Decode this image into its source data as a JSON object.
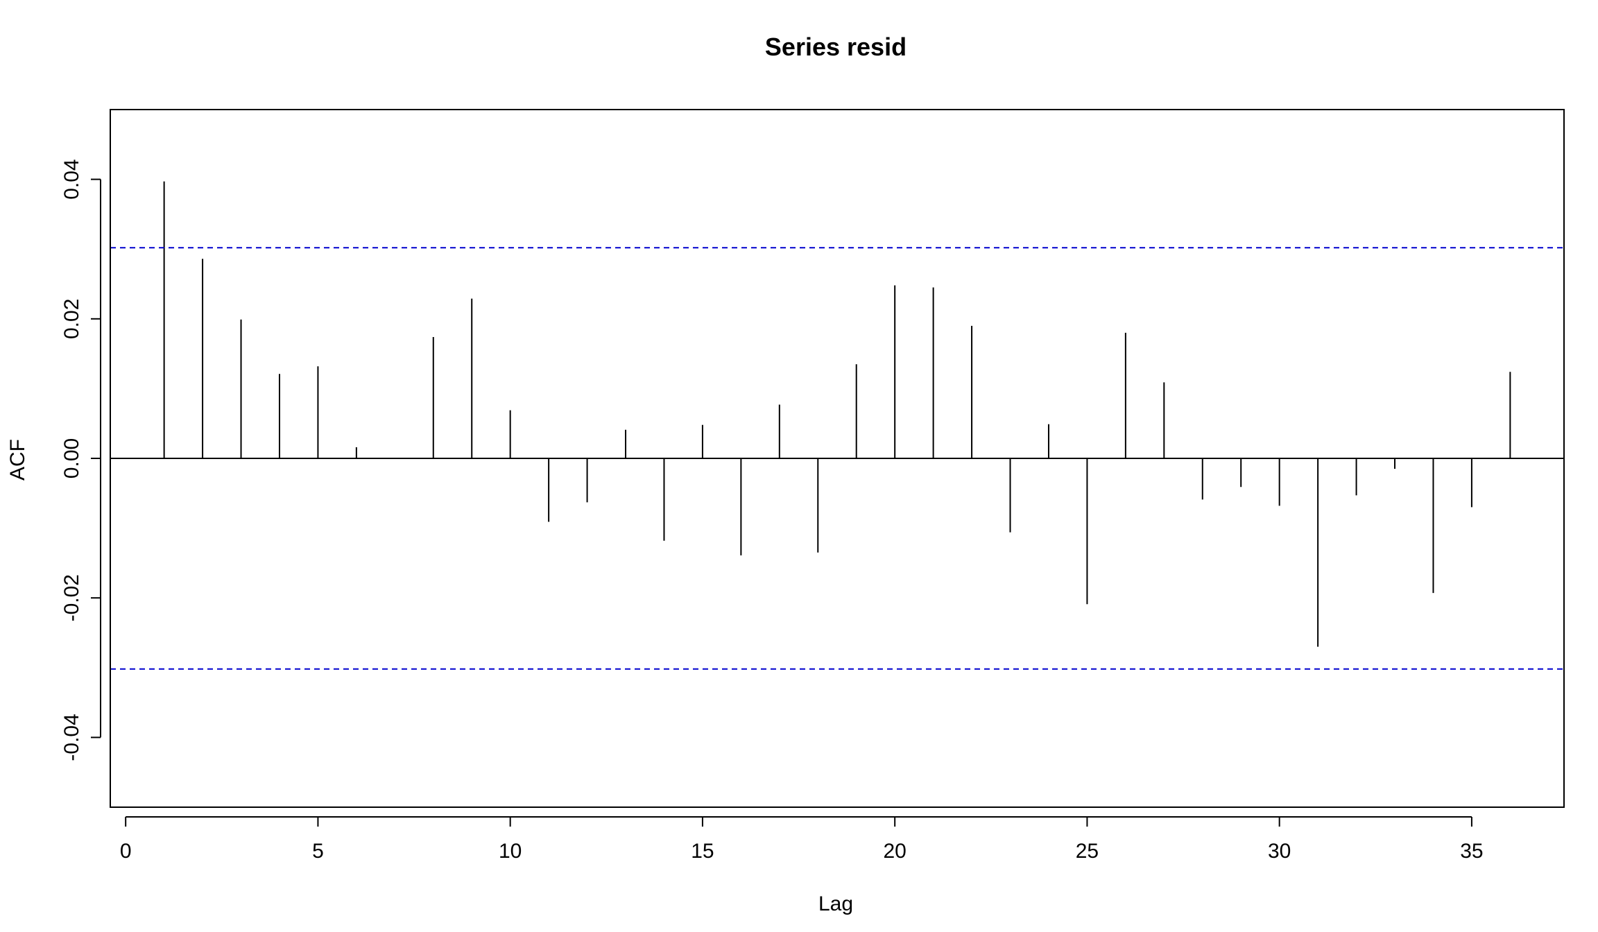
{
  "chart_data": {
    "type": "bar",
    "title": "Series  resid",
    "xlabel": "Lag",
    "ylabel": "ACF",
    "xlim": [
      -0.4,
      37.4
    ],
    "ylim": [
      -0.05,
      0.05
    ],
    "xticks": [
      0,
      5,
      10,
      15,
      20,
      25,
      30,
      35
    ],
    "xtick_labels": [
      "0",
      "5",
      "10",
      "15",
      "20",
      "25",
      "30",
      "35"
    ],
    "yticks": [
      -0.04,
      -0.02,
      0.0,
      0.02,
      0.04
    ],
    "ytick_labels": [
      "-0.04",
      "-0.02",
      "0.00",
      "0.02",
      "0.04"
    ],
    "grid": false,
    "confidence_bounds": {
      "upper": 0.0302,
      "lower": -0.0302,
      "color": "#0000CD",
      "style": "dashed"
    },
    "bar_color": "#000000",
    "lags": [
      1,
      2,
      3,
      4,
      5,
      6,
      7,
      8,
      9,
      10,
      11,
      12,
      13,
      14,
      15,
      16,
      17,
      18,
      19,
      20,
      21,
      22,
      23,
      24,
      25,
      26,
      27,
      28,
      29,
      30,
      31,
      32,
      33,
      34,
      35,
      36
    ],
    "values": [
      0.0397,
      0.0286,
      0.0199,
      0.0121,
      0.0132,
      0.0016,
      0.0,
      0.0174,
      0.0229,
      0.0069,
      -0.0091,
      -0.0063,
      0.0041,
      -0.0118,
      0.0048,
      -0.0139,
      0.0077,
      -0.0135,
      0.0135,
      0.0248,
      0.0245,
      0.019,
      -0.0106,
      0.0049,
      -0.0209,
      0.018,
      0.0109,
      -0.0059,
      -0.0041,
      -0.0068,
      -0.027,
      -0.0053,
      -0.0015,
      -0.0193,
      -0.007,
      0.0124
    ]
  }
}
